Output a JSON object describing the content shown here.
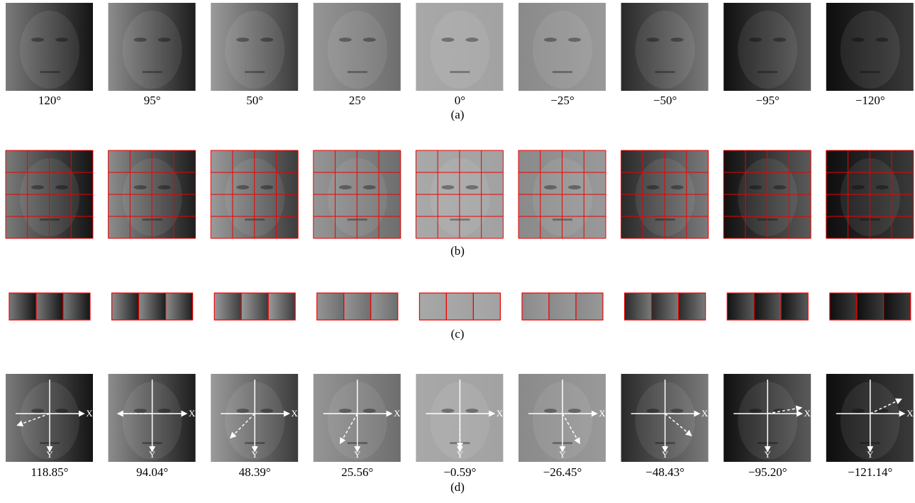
{
  "rows": [
    {
      "caption": "(a)",
      "labels": [
        "120°",
        "95°",
        "50°",
        "25°",
        "0°",
        "−25°",
        "−50°",
        "−95°",
        "−120°"
      ]
    },
    {
      "caption": "(b)"
    },
    {
      "caption": "(c)"
    },
    {
      "caption": "(d)",
      "labels": [
        "118.85°",
        "94.04°",
        "48.39°",
        "25.56°",
        "−0.59°",
        "−26.45°",
        "−48.43°",
        "−95.20°",
        "−121.14°"
      ]
    }
  ],
  "axis_labels": {
    "x": "X",
    "y": "Y"
  }
}
